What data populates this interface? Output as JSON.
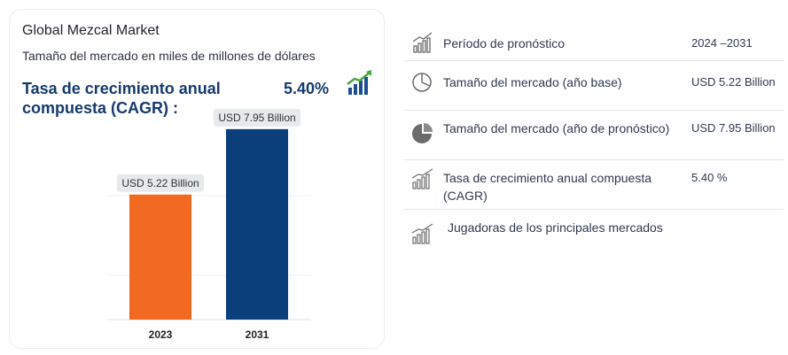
{
  "card": {
    "title": "Global Mezcal Market",
    "subtitle": "Tamaño del mercado en miles de millones de dólares",
    "cagr_label": "Tasa de crecimiento anual compuesta (CAGR) :",
    "cagr_value": "5.40%",
    "cagr_icon": "growth-chart-icon"
  },
  "chart_data": {
    "type": "bar",
    "categories": [
      "2023",
      "2031"
    ],
    "values": [
      5.22,
      7.95
    ],
    "data_labels": [
      "USD 5.22 Billion",
      "USD 7.95 Billion"
    ],
    "colors": [
      "#f26a21",
      "#0b3f7c"
    ],
    "title": "",
    "xlabel": "",
    "ylabel": "",
    "ylim": [
      0,
      8.5
    ],
    "grid": true
  },
  "table": {
    "rows": [
      {
        "icon": "forecast-chart-icon",
        "label": "Período de pronóstico",
        "value": "2024 –2031"
      },
      {
        "icon": "pie-chart-outline-icon",
        "label": "Tamaño del mercado (año base)",
        "value": "USD 5.22 Billion"
      },
      {
        "icon": "pie-chart-filled-icon",
        "label": "Tamaño del mercado (año de pronóstico)",
        "value": "USD 7.95 Billion"
      },
      {
        "icon": "bar-growth-icon",
        "label": "Tasa de crecimiento anual compuesta (CAGR)",
        "value": "5.40 %"
      },
      {
        "icon": "bar-growth-icon",
        "label": "Jugadoras de los principales mercados",
        "value": ""
      }
    ]
  }
}
